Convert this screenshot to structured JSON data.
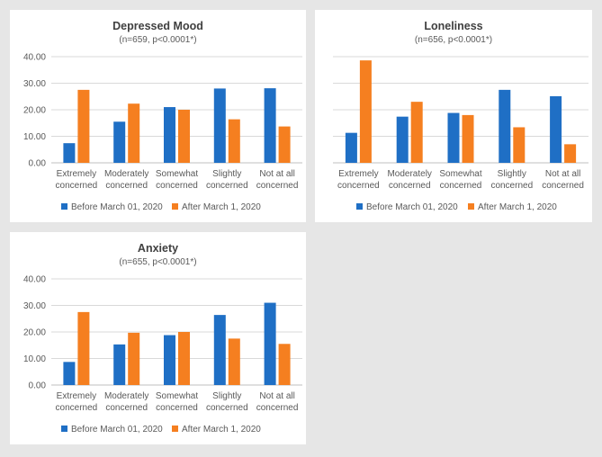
{
  "colors": {
    "before": "#1f6fc5",
    "after": "#f57f20",
    "grid": "#d9d9d9"
  },
  "legend": {
    "before": "Before March 01, 2020",
    "after": "After March 1, 2020"
  },
  "chart_data": [
    {
      "type": "bar",
      "title": "Depressed Mood",
      "subtitle": "(n=659, p<0.0001*)",
      "categories": [
        [
          "Extremely",
          "concerned"
        ],
        [
          "Moderately",
          "concerned"
        ],
        [
          "Somewhat",
          "concerned"
        ],
        [
          "Slightly",
          "concerned"
        ],
        [
          "Not at all",
          "concerned"
        ]
      ],
      "ylim": [
        0,
        40
      ],
      "yticks": [
        "40.00",
        "30.00",
        "20.00",
        "10.00",
        "0.00"
      ],
      "show_yaxis": true,
      "series": [
        {
          "name": "Before March 01, 2020",
          "values": [
            7.4,
            15.5,
            21.0,
            28.0,
            28.1
          ]
        },
        {
          "name": "After March 1, 2020",
          "values": [
            27.5,
            22.3,
            20.0,
            16.4,
            13.7
          ]
        }
      ]
    },
    {
      "type": "bar",
      "title": "Loneliness",
      "subtitle": "(n=656, p<0.0001*)",
      "categories": [
        [
          "Extremely",
          "concerned"
        ],
        [
          "Moderately",
          "concerned"
        ],
        [
          "Somewhat",
          "concerned"
        ],
        [
          "Slightly",
          "concerned"
        ],
        [
          "Not at all",
          "concerned"
        ]
      ],
      "ylim": [
        0,
        40
      ],
      "yticks": [],
      "show_yaxis": false,
      "series": [
        {
          "name": "Before March 01, 2020",
          "values": [
            11.3,
            17.4,
            18.8,
            27.5,
            25.1
          ]
        },
        {
          "name": "After March 1, 2020",
          "values": [
            38.6,
            23.0,
            18.0,
            13.4,
            7.0
          ]
        }
      ]
    },
    {
      "type": "bar",
      "title": "Anxiety",
      "subtitle": "(n=655, p<0.0001*)",
      "categories": [
        [
          "Extremely",
          "concerned"
        ],
        [
          "Moderately",
          "concerned"
        ],
        [
          "Somewhat",
          "concerned"
        ],
        [
          "Slightly",
          "concerned"
        ],
        [
          "Not at all",
          "concerned"
        ]
      ],
      "ylim": [
        0,
        40
      ],
      "yticks": [
        "40.00",
        "30.00",
        "20.00",
        "10.00",
        "0.00"
      ],
      "show_yaxis": true,
      "series": [
        {
          "name": "Before March 01, 2020",
          "values": [
            8.7,
            15.3,
            18.8,
            26.4,
            31.0
          ]
        },
        {
          "name": "After March 1, 2020",
          "values": [
            27.5,
            19.7,
            20.0,
            17.5,
            15.5
          ]
        }
      ]
    }
  ]
}
